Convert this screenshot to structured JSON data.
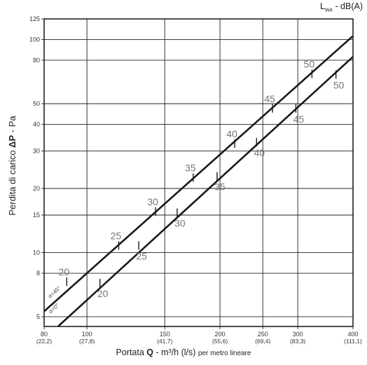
{
  "chart_data": {
    "type": "line",
    "xlabel": {
      "prefix": "Portata ",
      "bold": "Q",
      "middle": " - m³/h (l/s) ",
      "suffix": "per metro lineare"
    },
    "ylabel": {
      "prefix": "Perdita di carico ",
      "bold": "ΔP",
      "suffix": " - Pa"
    },
    "top_right_label": {
      "main": "L",
      "sub": "WA",
      "suffix": " - dB(A)"
    },
    "x_scale": "log",
    "y_scale": "log",
    "xlim": [
      80,
      400
    ],
    "ylim": [
      4.5,
      125
    ],
    "grid": true,
    "x_ticks": [
      {
        "value": 80,
        "label": "80",
        "sub": "(22,2)"
      },
      {
        "value": 100,
        "label": "100",
        "sub": "(27,8)"
      },
      {
        "value": 150,
        "label": "150",
        "sub": "(41,7)"
      },
      {
        "value": 200,
        "label": "200",
        "sub": "(55,6)"
      },
      {
        "value": 250,
        "label": "250",
        "sub": "(69,4)"
      },
      {
        "value": 300,
        "label": "300",
        "sub": "(83,3)"
      },
      {
        "value": 400,
        "label": "400",
        "sub": "(111,1)"
      }
    ],
    "y_ticks": [
      {
        "value": 5,
        "label": "5"
      },
      {
        "value": 8,
        "label": "8"
      },
      {
        "value": 10,
        "label": "10"
      },
      {
        "value": 15,
        "label": "15"
      },
      {
        "value": 20,
        "label": "20"
      },
      {
        "value": 30,
        "label": "30"
      },
      {
        "value": 40,
        "label": "40"
      },
      {
        "value": 50,
        "label": "50"
      },
      {
        "value": 80,
        "label": "80"
      },
      {
        "value": 100,
        "label": "100"
      },
      {
        "value": 125,
        "label": "125"
      }
    ],
    "series": [
      {
        "name": "α=45°",
        "points": [
          [
            80,
            5.3
          ],
          [
            400,
            104
          ]
        ],
        "db_marks": [
          {
            "x": 90,
            "y": 7.3,
            "label": "20"
          },
          {
            "x": 118,
            "y": 10.8,
            "label": "25"
          },
          {
            "x": 143,
            "y": 15.6,
            "label": "30"
          },
          {
            "x": 174,
            "y": 22.5,
            "label": "35"
          },
          {
            "x": 216,
            "y": 32.5,
            "label": "40"
          },
          {
            "x": 263,
            "y": 47.5,
            "label": "45"
          },
          {
            "x": 323,
            "y": 69,
            "label": "50"
          }
        ]
      },
      {
        "name": "α=0°",
        "points": [
          [
            86,
            4.5
          ],
          [
            400,
            83
          ]
        ],
        "db_marks": [
          {
            "x": 107,
            "y": 7.2,
            "label": "20"
          },
          {
            "x": 131,
            "y": 10.8,
            "label": "25"
          },
          {
            "x": 160,
            "y": 15.4,
            "label": "30"
          },
          {
            "x": 197,
            "y": 22.8,
            "label": "35"
          },
          {
            "x": 242,
            "y": 33,
            "label": "40"
          },
          {
            "x": 297,
            "y": 47.5,
            "label": "45"
          },
          {
            "x": 366,
            "y": 68.5,
            "label": "50"
          }
        ]
      }
    ]
  }
}
